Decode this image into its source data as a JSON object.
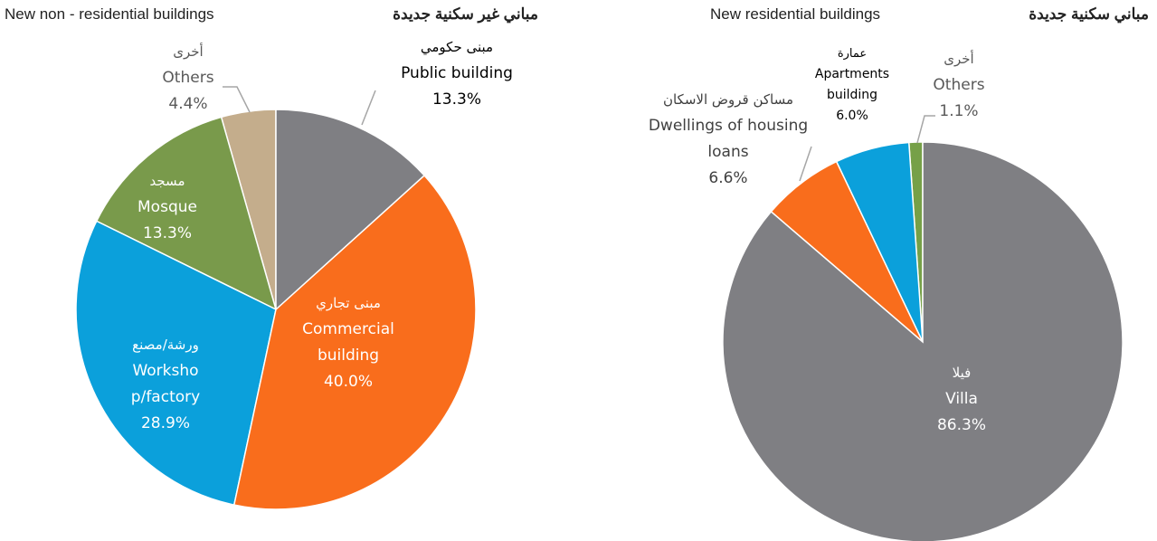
{
  "chart_data": [
    {
      "type": "pie",
      "title": "New non - residential buildings",
      "title_ar": "مباني غير سكنية جديدة",
      "categories": [
        "Public building",
        "Commercial building",
        "Workshop/factory",
        "Mosque",
        "Others"
      ],
      "categories_ar": [
        "مبنى حكومي",
        "مبنى تجاري",
        "ورشة/مصنع",
        "مسجد",
        "أخرى"
      ],
      "values": [
        13.3,
        40.0,
        28.9,
        13.3,
        4.4
      ],
      "value_labels": [
        "13.3%",
        "40.0%",
        "28.9%",
        "13.3%",
        "4.4%"
      ],
      "colors": [
        "#7f7f83",
        "#f96d1c",
        "#0ba0db",
        "#799a4b",
        "#c4ad8c"
      ]
    },
    {
      "type": "pie",
      "title": "New residential buildings",
      "title_ar": "مباني سكنية جديدة",
      "categories": [
        "Villa",
        "Dwellings of housing loans",
        "Apartments building",
        "Others"
      ],
      "categories_ar": [
        "فيلا",
        "مساكن قروض الاسكان",
        "عمارة",
        "أخرى"
      ],
      "values": [
        86.3,
        6.6,
        6.0,
        1.1
      ],
      "value_labels": [
        "86.3%",
        "6.6%",
        "6.0%",
        "1.1%"
      ],
      "colors": [
        "#7f7f83",
        "#f96d1c",
        "#0ba0db",
        "#76a048"
      ]
    }
  ]
}
